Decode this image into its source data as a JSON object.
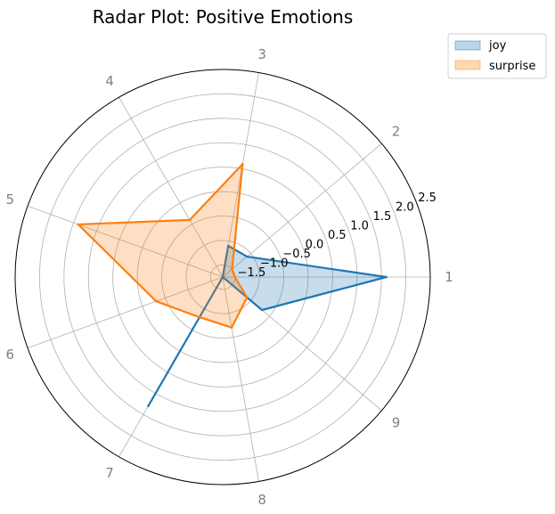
{
  "chart_data": {
    "type": "radar",
    "title": "Radar Plot: Positive Emotions",
    "categories": [
      "1",
      "2",
      "3",
      "4",
      "5",
      "6",
      "7",
      "8",
      "9"
    ],
    "r_ticks": [
      "−1.5",
      "−1.0",
      "−0.5",
      "0.0",
      "0.5",
      "1.0",
      "1.5",
      "2.0",
      "2.5"
    ],
    "r_tick_values": [
      -1.5,
      -1.0,
      -0.5,
      0.0,
      0.5,
      1.0,
      1.5,
      2.0,
      2.5
    ],
    "rlim": [
      -1.75,
      2.5
    ],
    "grid": true,
    "legend_position": "top-right-outside",
    "series": [
      {
        "name": "joy",
        "color": "#1f77b4",
        "fill_color": "#1f77b4",
        "values": [
          1.6,
          -1.1,
          -1.1,
          -1.75,
          -1.75,
          -1.75,
          1.3,
          -1.75,
          -0.7
        ]
      },
      {
        "name": "surprise",
        "color": "#ff7f0e",
        "fill_color": "#ff7f0e",
        "values": [
          -1.5,
          -1.5,
          0.6,
          -0.4,
          1.4,
          -0.3,
          -0.8,
          -0.7,
          -1.1
        ]
      }
    ]
  }
}
